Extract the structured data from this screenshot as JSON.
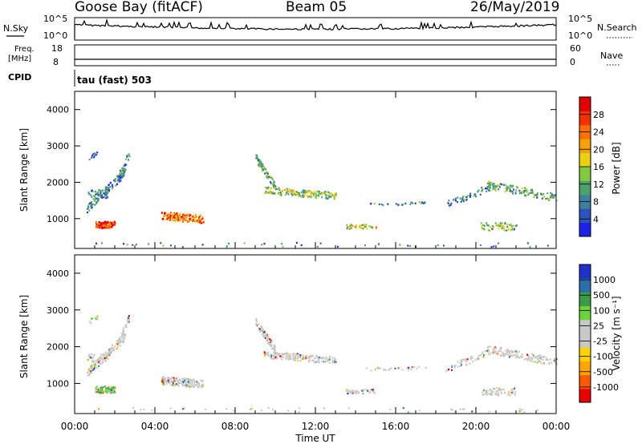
{
  "header": {
    "station": "Goose Bay (fitACF)",
    "beam": "Beam 05",
    "date": "26/May/2019"
  },
  "strip_nsky": {
    "left_label": "N.Sky",
    "right_label": "N.Search",
    "ticks_left": [
      "10^5",
      "10^0"
    ],
    "ticks_right": [
      "10^5",
      "10^0"
    ]
  },
  "strip_freq": {
    "left_label_1": "Freq.",
    "left_label_2": "[MHz]",
    "right_label": "Nave",
    "ticks_left": [
      "18",
      "8"
    ],
    "ticks_right": [
      "60",
      "0"
    ],
    "freq_value": 8
  },
  "strip_cpid": {
    "left_label": "CPID",
    "text": "tau (fast) 503"
  },
  "chart_data": [
    {
      "type": "heatmap",
      "name": "power-panel",
      "ylabel": "Slant Range [km]",
      "xlabel": "",
      "ylim": [
        180,
        4500
      ],
      "yticks": [
        "4000",
        "3000",
        "2000",
        "1000"
      ],
      "ytick_values": [
        4000,
        3000,
        2000,
        1000
      ],
      "colorbar_label": "Power [dB]",
      "colorbar_ticks": [
        "28",
        "24",
        "20",
        "16",
        "12",
        "8",
        "4"
      ],
      "colors": [
        "#1d23e6",
        "#2b53b8",
        "#3f7fa0",
        "#4da26a",
        "#82c840",
        "#e9d114",
        "#f3a200",
        "#ff6f00",
        "#f23300",
        "#e00000"
      ]
    },
    {
      "type": "heatmap",
      "name": "velocity-panel",
      "ylabel": "Slant Range [km]",
      "xlabel": "Time UT",
      "ylim": [
        180,
        4500
      ],
      "yticks": [
        "4000",
        "3000",
        "2000",
        "1000"
      ],
      "ytick_values": [
        4000,
        3000,
        2000,
        1000
      ],
      "colorbar_label": "Velocity [m s⁻¹]",
      "colorbar_ticks": [
        "1000",
        "500",
        "100",
        "25",
        "-25",
        "-100",
        "-500",
        "-1000"
      ],
      "colors": [
        "#e60000",
        "#ff5a00",
        "#ffa500",
        "#ffd200",
        "#c8c8c8",
        "#c8c8c8",
        "#6ed23c",
        "#3c9c46",
        "#2e6ea8",
        "#1e32c8"
      ]
    }
  ],
  "time_axis": {
    "label": "Time UT",
    "ticks": [
      "00:00",
      "04:00",
      "08:00",
      "12:00",
      "16:00",
      "20:00",
      "00:00"
    ],
    "tick_hours": [
      0,
      4,
      8,
      12,
      16,
      20,
      24
    ]
  }
}
